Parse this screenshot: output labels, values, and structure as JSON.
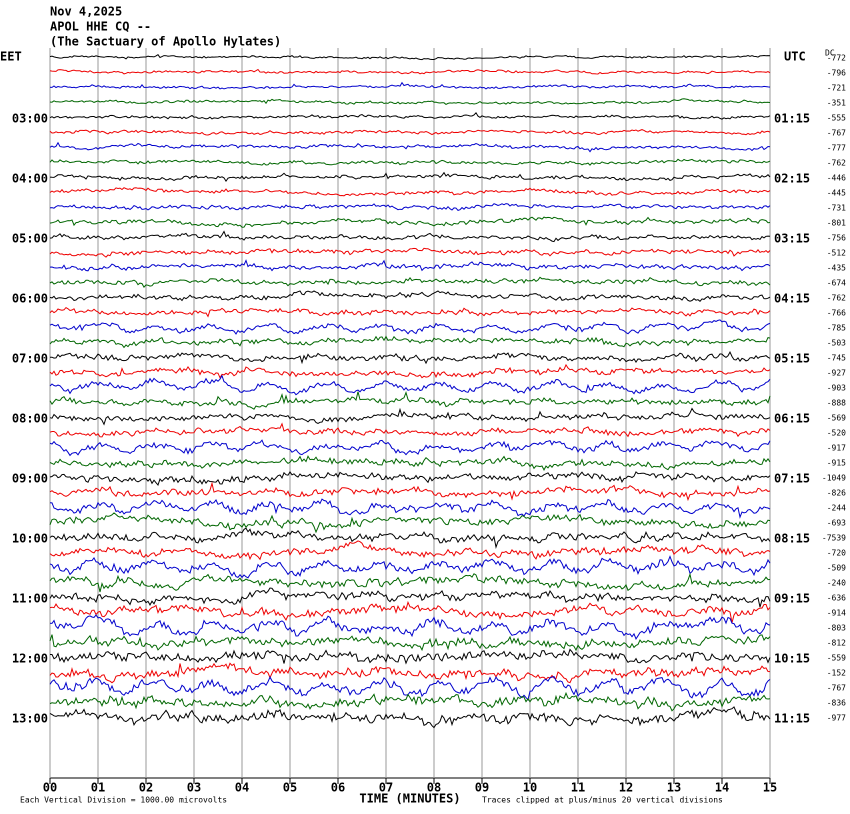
{
  "header": {
    "date": "Nov 4,2025",
    "station": "APOL HHE CQ --",
    "site": "(The Sactuary of Apollo Hylates)"
  },
  "left_label": "EET",
  "right_label": "UTC",
  "dc_label": "DC",
  "left_times": [
    "03:00",
    "04:00",
    "05:00",
    "06:00",
    "07:00",
    "08:00",
    "09:00",
    "10:00",
    "11:00",
    "12:00",
    "13:00"
  ],
  "right_times": [
    "01:15",
    "02:15",
    "03:15",
    "04:15",
    "05:15",
    "06:15",
    "07:15",
    "08:15",
    "09:15",
    "10:15",
    "11:15"
  ],
  "offsets": [
    "-772",
    "-796",
    "-721",
    "-351",
    "-555",
    "-767",
    "-777",
    "-762",
    "-446",
    "-445",
    "-731",
    "-801",
    "-756",
    "-512",
    "-435",
    "-674",
    "-762",
    "-766",
    "-785",
    "-503",
    "-745",
    "-927",
    "-903",
    "-888",
    "-569",
    "-520",
    "-917",
    "-915",
    "-1049",
    "-826",
    "-244",
    "-693",
    "-7539",
    "-720",
    "-509",
    "-240",
    "-636",
    "-914",
    "-803",
    "-812",
    "-559",
    "-152",
    "-767",
    "-836",
    "-977"
  ],
  "x_ticks": [
    "00",
    "01",
    "02",
    "03",
    "04",
    "05",
    "06",
    "07",
    "08",
    "09",
    "10",
    "11",
    "12",
    "13",
    "14",
    "15"
  ],
  "x_label": "TIME (MINUTES)",
  "footer": {
    "division": "Each Vertical Division = 1000.00 microvolts",
    "clipped": "Traces clipped at plus/minus 20 vertical divisions"
  }
}
